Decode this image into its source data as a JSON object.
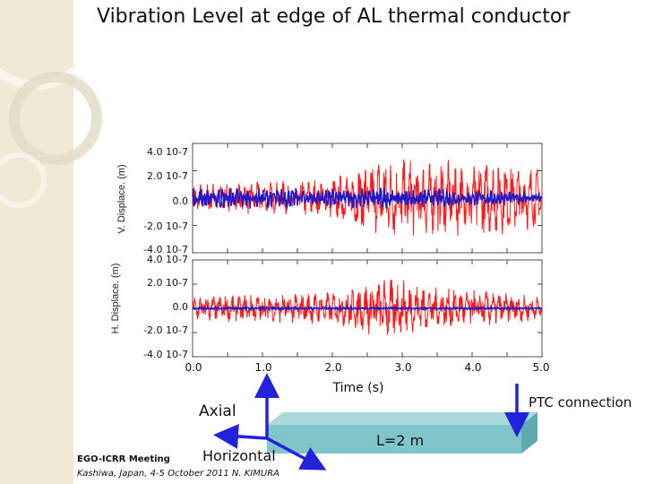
{
  "slide": {
    "title": "Vibration Level at edge of AL thermal conductor",
    "footer_meeting": "EGO-ICRR Meeting",
    "footer_details": "Kashiwa, Japan, 4-5 October 2011 N. KIMURA"
  },
  "diagram": {
    "axial_label": "Axial",
    "horizontal_label": "Horizontal",
    "length_label": "L=2 m",
    "ptc_label": "PTC connection"
  },
  "colors": {
    "sidebar": "#f1e9d6",
    "conductor_bar": "#7fc5c9",
    "arrow": "#2222dd",
    "series_red": "#ff1a1a",
    "series_blue": "#1a1acc"
  },
  "chart_data": [
    {
      "type": "line",
      "panel": "top",
      "ylabel": "V. Displace. (m)",
      "xlim": [
        0,
        5
      ],
      "ylim": [
        -4e-07,
        4e-07
      ],
      "ytick_labels": [
        "4.0 10-7",
        "2.0 10-7",
        "0.0",
        "-2.0 10-7",
        "-4.0 10-7"
      ],
      "series": [
        {
          "name": "red",
          "color": "#ff1a1a",
          "amplitude_envelope": [
            {
              "t": 0.0,
              "a": 8e-08
            },
            {
              "t": 1.2,
              "a": 9e-08
            },
            {
              "t": 2.0,
              "a": 1.1e-07
            },
            {
              "t": 2.7,
              "a": 2.2e-07
            },
            {
              "t": 3.5,
              "a": 2e-07
            },
            {
              "t": 4.3,
              "a": 2e-07
            },
            {
              "t": 5.0,
              "a": 1.6e-07
            }
          ]
        },
        {
          "name": "blue",
          "color": "#1a1acc",
          "amplitude_envelope": [
            {
              "t": 0.0,
              "a": 6e-08
            },
            {
              "t": 2.0,
              "a": 5e-08
            },
            {
              "t": 2.8,
              "a": 6e-08
            },
            {
              "t": 5.0,
              "a": 3e-08
            }
          ]
        }
      ]
    },
    {
      "type": "line",
      "panel": "bottom",
      "ylabel": "H. Displace. (m)",
      "xlabel": "Time (s)",
      "xlim": [
        0,
        5
      ],
      "ylim": [
        -4e-07,
        4e-07
      ],
      "xtick_labels": [
        "0.0",
        "1.0",
        "2.0",
        "3.0",
        "4.0",
        "5.0"
      ],
      "ytick_labels": [
        "4.0 10-7",
        "2.0 10-7",
        "0.0",
        "-2.0 10-7",
        "-4.0 10-7"
      ],
      "series": [
        {
          "name": "red",
          "color": "#ff1a1a",
          "amplitude_envelope": [
            {
              "t": 0.0,
              "a": 8e-08
            },
            {
              "t": 1.3,
              "a": 9e-08
            },
            {
              "t": 2.0,
              "a": 1e-07
            },
            {
              "t": 2.8,
              "a": 1.9e-07
            },
            {
              "t": 3.4,
              "a": 1.3e-07
            },
            {
              "t": 4.2,
              "a": 1.1e-07
            },
            {
              "t": 5.0,
              "a": 7e-08
            }
          ]
        },
        {
          "name": "blue",
          "color": "#1a1acc",
          "amplitude_envelope": [
            {
              "t": 0.0,
              "a": 8e-09
            },
            {
              "t": 5.0,
              "a": 6e-09
            }
          ]
        }
      ]
    }
  ]
}
